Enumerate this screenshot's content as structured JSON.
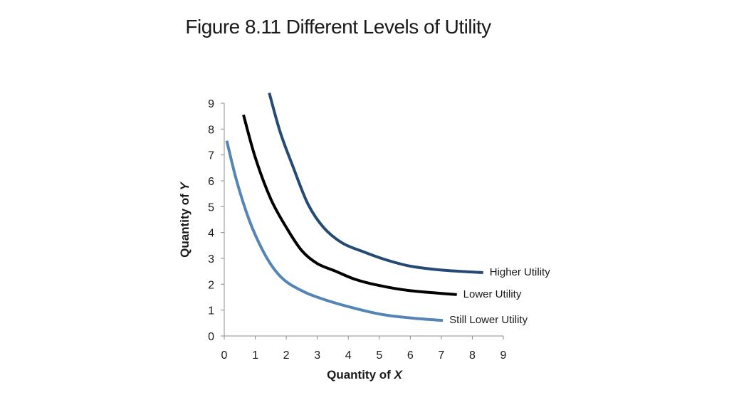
{
  "slide": {
    "title": "Figure 8.11 Different Levels of Utility"
  },
  "chart_data": {
    "type": "line",
    "xlabel_prefix": "Quantity of ",
    "xlabel_var": "X",
    "ylabel_prefix": "Quantity of ",
    "ylabel_var": "Y",
    "xlim": [
      0,
      9
    ],
    "ylim": [
      0,
      9
    ],
    "x_ticks": [
      "0",
      "1",
      "2",
      "3",
      "4",
      "5",
      "6",
      "7",
      "8",
      "9"
    ],
    "y_ticks": [
      "0",
      "1",
      "2",
      "3",
      "4",
      "5",
      "6",
      "7",
      "8",
      "9"
    ],
    "grid": false,
    "series": [
      {
        "name": "Higher Utility",
        "color": "#254a74",
        "points": [
          [
            1.45,
            9.4
          ],
          [
            1.8,
            7.9
          ],
          [
            2.2,
            6.6
          ],
          [
            2.7,
            5.1
          ],
          [
            3.2,
            4.2
          ],
          [
            3.8,
            3.6
          ],
          [
            4.5,
            3.25
          ],
          [
            5.2,
            2.95
          ],
          [
            6.0,
            2.7
          ],
          [
            7.0,
            2.55
          ],
          [
            8.35,
            2.45
          ]
        ]
      },
      {
        "name": "Lower Utility",
        "color": "#000000",
        "points": [
          [
            0.62,
            8.55
          ],
          [
            1.0,
            6.9
          ],
          [
            1.5,
            5.3
          ],
          [
            2.0,
            4.2
          ],
          [
            2.5,
            3.3
          ],
          [
            3.0,
            2.8
          ],
          [
            3.6,
            2.5
          ],
          [
            4.2,
            2.2
          ],
          [
            5.0,
            1.95
          ],
          [
            6.0,
            1.75
          ],
          [
            7.5,
            1.6
          ]
        ]
      },
      {
        "name": "Still Lower Utility",
        "color": "#5585b5",
        "points": [
          [
            0.08,
            7.55
          ],
          [
            0.4,
            6.0
          ],
          [
            0.8,
            4.5
          ],
          [
            1.2,
            3.4
          ],
          [
            1.6,
            2.6
          ],
          [
            2.0,
            2.1
          ],
          [
            2.5,
            1.75
          ],
          [
            3.0,
            1.5
          ],
          [
            3.8,
            1.2
          ],
          [
            5.0,
            0.85
          ],
          [
            6.0,
            0.7
          ],
          [
            7.05,
            0.6
          ]
        ]
      }
    ]
  }
}
